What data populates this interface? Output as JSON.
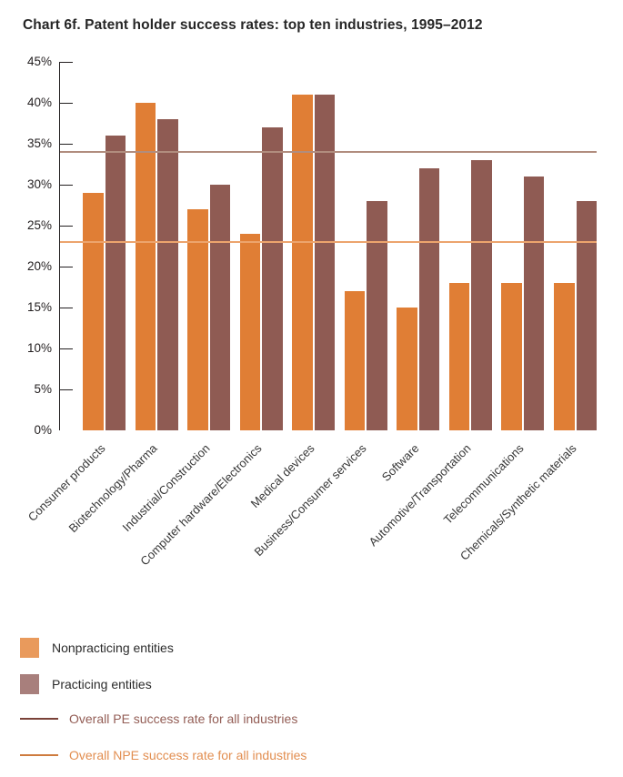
{
  "title": "Chart 6f. Patent holder success rates: top ten industries, 1995–2012",
  "chart_data": {
    "type": "bar",
    "categories": [
      "Consumer products",
      "Biotechnology/Pharma",
      "Industrial/Construction",
      "Computer hardware/Electronics",
      "Medical devices",
      "Business/Consumer services",
      "Software",
      "Automotive/Transportation",
      "Telecommunications",
      "Chemicals/Synthetic materials"
    ],
    "series": [
      {
        "name": "Nonpracticing entities",
        "color": "#e07e35",
        "values": [
          29,
          40,
          27,
          24,
          41,
          17,
          15,
          18,
          18,
          18
        ]
      },
      {
        "name": "Practicing entities",
        "color": "#8f5b53",
        "values": [
          36,
          38,
          30,
          37,
          41,
          28,
          32,
          33,
          31,
          28
        ]
      }
    ],
    "reference_lines": [
      {
        "label": "Overall PE success rate for all industries",
        "value": 34,
        "color": "#b18d7e"
      },
      {
        "label": "Overall NPE success rate for all industries",
        "value": 23,
        "color": "#eca46d"
      }
    ],
    "ylabel": "",
    "xlabel": "",
    "ylim": [
      0,
      45
    ],
    "ytick_step": 5,
    "ytick_labels": [
      "0%",
      "5%",
      "10%",
      "15%",
      "20%",
      "25%",
      "30%",
      "35%",
      "40%",
      "45%"
    ],
    "grid": false,
    "legend_position": "bottom-left"
  },
  "legend": {
    "items": [
      {
        "label": "Nonpracticing entities",
        "type": "square",
        "swatch_color": "#e99a5c",
        "text_color": "#2b2b2b"
      },
      {
        "label": "Practicing entities",
        "type": "square",
        "swatch_color": "#a87f7c",
        "text_color": "#2b2b2b"
      },
      {
        "label": "Overall PE success rate for all industries",
        "type": "line",
        "swatch_color": "#7a4238",
        "text_color": "#935d55"
      },
      {
        "label": "Overall NPE success rate for all industries",
        "type": "line",
        "swatch_color": "#ce7b3e",
        "text_color": "#e28e50"
      }
    ]
  }
}
